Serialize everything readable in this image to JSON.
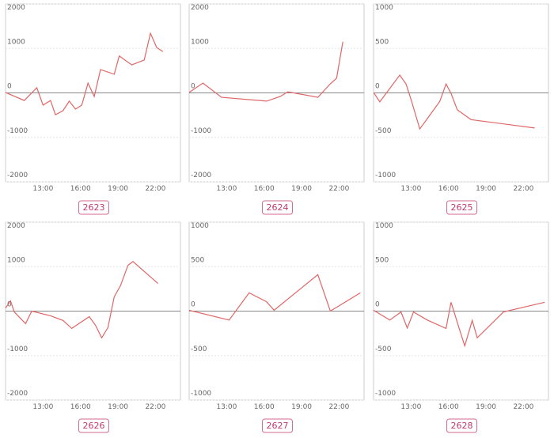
{
  "chart_data": [
    {
      "type": "line",
      "title": "2623",
      "color": "#e06666",
      "x": [
        10,
        11.5,
        12.5,
        13,
        13.6,
        14,
        14.6,
        15.1,
        15.6,
        16.1,
        16.6,
        17.1,
        17.6,
        18.7,
        19.1,
        20.1,
        21.1,
        21.6,
        22.1,
        22.6
      ],
      "values": [
        10,
        -170,
        115,
        -275,
        -170,
        -490,
        -400,
        -185,
        -365,
        -275,
        220,
        -80,
        525,
        420,
        830,
        630,
        740,
        1340,
        1020,
        930
      ],
      "xlim": [
        10,
        24
      ],
      "xticks": [
        {
          "value": 13,
          "label": "13:00"
        },
        {
          "value": 16,
          "label": "16:00"
        },
        {
          "value": 19,
          "label": "19:00"
        },
        {
          "value": 22,
          "label": "22:00"
        }
      ],
      "ylim": [
        -2000,
        2000
      ],
      "yticks": [
        -2000,
        -1000,
        0,
        1000,
        2000
      ]
    },
    {
      "type": "line",
      "title": "2624",
      "color": "#e06666",
      "x": [
        10,
        11.1,
        12.6,
        16.2,
        17.3,
        17.9,
        20.3,
        21.3,
        21.8,
        22.3
      ],
      "values": [
        10,
        220,
        -100,
        -185,
        -80,
        25,
        -100,
        205,
        330,
        1150
      ],
      "xlim": [
        10,
        24
      ],
      "xticks": [
        {
          "value": 13,
          "label": "13:00"
        },
        {
          "value": 16,
          "label": "16:00"
        },
        {
          "value": 19,
          "label": "19:00"
        },
        {
          "value": 22,
          "label": "22:00"
        }
      ],
      "ylim": [
        -2000,
        2000
      ],
      "yticks": [
        -2000,
        -1000,
        0,
        1000,
        2000
      ]
    },
    {
      "type": "line",
      "title": "2625",
      "color": "#e06666",
      "x": [
        10,
        10.5,
        12.1,
        12.6,
        13,
        13.7,
        14.3,
        15.3,
        15.8,
        16.2,
        16.7,
        17.8,
        22.9
      ],
      "values": [
        5,
        -100,
        200,
        100,
        -75,
        -405,
        -290,
        -95,
        100,
        -5,
        -190,
        -300,
        -395
      ],
      "xlim": [
        10,
        24
      ],
      "xticks": [
        {
          "value": 13,
          "label": "13:00"
        },
        {
          "value": 16,
          "label": "16:00"
        },
        {
          "value": 19,
          "label": "19:00"
        },
        {
          "value": 22,
          "label": "22:00"
        }
      ],
      "ylim": [
        -1000,
        1000
      ],
      "yticks": [
        -1000,
        -500,
        0,
        500,
        1000
      ]
    },
    {
      "type": "line",
      "title": "2626",
      "color": "#e06666",
      "x": [
        10,
        10.4,
        10.7,
        11.6,
        12.1,
        13.6,
        14.6,
        15.3,
        16.7,
        17.2,
        17.7,
        18.2,
        18.7,
        19.2,
        19.8,
        20.2,
        22.2
      ],
      "values": [
        70,
        230,
        -20,
        -280,
        0,
        -105,
        -210,
        -390,
        -125,
        -320,
        -600,
        -370,
        320,
        570,
        1030,
        1115,
        620
      ],
      "xlim": [
        10,
        24
      ],
      "xticks": [
        {
          "value": 13,
          "label": "13:00"
        },
        {
          "value": 16,
          "label": "16:00"
        },
        {
          "value": 19,
          "label": "19:00"
        },
        {
          "value": 22,
          "label": "22:00"
        }
      ],
      "ylim": [
        -2000,
        2000
      ],
      "yticks": [
        -2000,
        -1000,
        0,
        1000,
        2000
      ]
    },
    {
      "type": "line",
      "title": "2627",
      "color": "#e06666",
      "x": [
        10,
        13.2,
        14.8,
        16.2,
        16.8,
        20.3,
        21.3,
        23.7
      ],
      "values": [
        10,
        -100,
        205,
        105,
        10,
        410,
        0,
        205
      ],
      "xlim": [
        10,
        24
      ],
      "xticks": [
        {
          "value": 13,
          "label": "13:00"
        },
        {
          "value": 16,
          "label": "16:00"
        },
        {
          "value": 19,
          "label": "19:00"
        },
        {
          "value": 22,
          "label": "22:00"
        }
      ],
      "ylim": [
        -1000,
        1000
      ],
      "yticks": [
        -1000,
        -500,
        0,
        500,
        1000
      ]
    },
    {
      "type": "line",
      "title": "2628",
      "color": "#e06666",
      "x": [
        10,
        11.3,
        12.2,
        12.7,
        13.2,
        14.3,
        15.8,
        16.2,
        16.8,
        17.3,
        17.9,
        18.3,
        20.4,
        23.7
      ],
      "values": [
        10,
        -100,
        -10,
        -190,
        -10,
        -100,
        -195,
        100,
        -170,
        -390,
        -105,
        -300,
        -10,
        100
      ],
      "xlim": [
        10,
        24
      ],
      "xticks": [
        {
          "value": 13,
          "label": "13:00"
        },
        {
          "value": 16,
          "label": "16:00"
        },
        {
          "value": 19,
          "label": "19:00"
        },
        {
          "value": 22,
          "label": "22:00"
        }
      ],
      "ylim": [
        -1000,
        1000
      ],
      "yticks": [
        -1000,
        -500,
        0,
        500,
        1000
      ]
    }
  ]
}
